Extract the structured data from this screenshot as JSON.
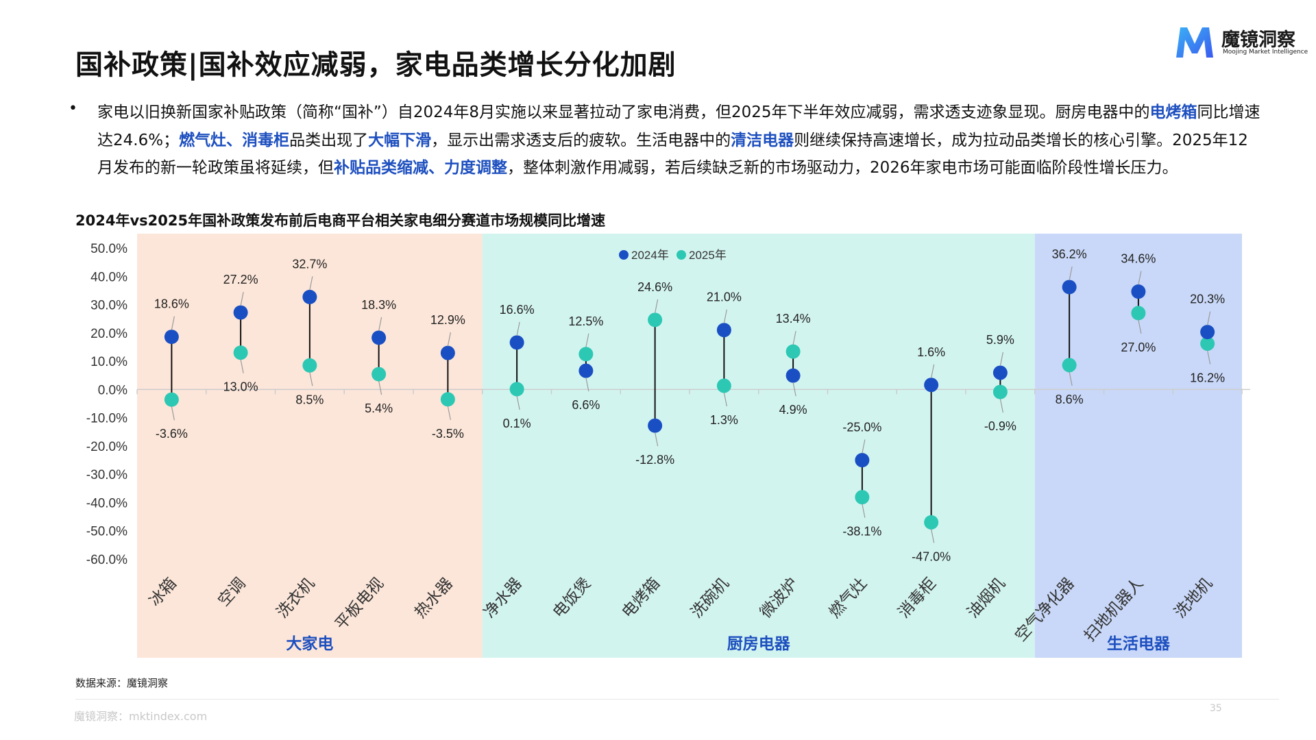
{
  "page": {
    "title": "国补政策|国补效应减弱，家电品类增长分化加剧",
    "logo": {
      "name": "魔镜洞察",
      "sub": "Moojing Market Intelligence"
    },
    "bullet_segments": [
      {
        "text": "家电以旧换新国家补贴政策（简称“国补”）自2024年8月实施以来显著拉动了家电消费，但2025年下半年效应减弱，需求透支迹象显现。厨房电器中的",
        "hl": false
      },
      {
        "text": "电烤箱",
        "hl": true
      },
      {
        "text": "同比增速达24.6%；",
        "hl": false
      },
      {
        "text": "燃气灶、消毒柜",
        "hl": true
      },
      {
        "text": "品类出现了",
        "hl": false
      },
      {
        "text": "大幅下滑",
        "hl": true
      },
      {
        "text": "，显示出需求透支后的疲软。生活电器中的",
        "hl": false
      },
      {
        "text": "清洁电器",
        "hl": true
      },
      {
        "text": "则继续保持高速增长，成为拉动品类增长的核心引擎。2025年12月发布的新一轮政策虽将延续，但",
        "hl": false
      },
      {
        "text": "补贴品类缩减、力度调整",
        "hl": true
      },
      {
        "text": "，整体刺激作用减弱，若后续缺乏新的市场驱动力，2026年家电市场可能面临阶段性增长压力。",
        "hl": false
      }
    ],
    "chart_title": "2024年vs2025年国补政策发布前后电商平台相关家电细分赛道市场规模同比增速",
    "source": "数据来源：魔镜洞察",
    "footer": "魔镜洞察：mktindex.com",
    "page_number": "35"
  },
  "colors": {
    "series_2024": "#1a4fc4",
    "series_2025": "#2cc8b4",
    "bg_large": "#fce6d9",
    "bg_kitchen": "#d2f4ef",
    "bg_life": "#c9d8f8",
    "group_label": "#1d4fbf",
    "highlight": "#1d4fbf"
  },
  "chart_data": {
    "type": "dumbbell",
    "title": "2024年vs2025年国补政策发布前后电商平台相关家电细分赛道市场规模同比增速",
    "categories": [
      "冰箱",
      "空调",
      "洗衣机",
      "平板电视",
      "热水器",
      "净水器",
      "电饭煲",
      "电烤箱",
      "洗碗机",
      "微波炉",
      "燃气灶",
      "消毒柜",
      "油烟机",
      "空气净化器",
      "扫地机器人",
      "洗地机"
    ],
    "series": [
      {
        "name": "2024年",
        "values": [
          18.6,
          27.2,
          32.7,
          18.3,
          12.9,
          16.6,
          6.6,
          -12.8,
          21.0,
          4.9,
          -25.0,
          1.6,
          5.9,
          36.2,
          34.6,
          20.3
        ]
      },
      {
        "name": "2025年",
        "values": [
          -3.6,
          13.0,
          8.5,
          5.4,
          -3.5,
          0.1,
          12.5,
          24.6,
          1.3,
          13.4,
          -38.1,
          -47.0,
          -0.9,
          8.6,
          27.0,
          16.2
        ]
      }
    ],
    "groups": [
      {
        "name": "大家电",
        "from": 0,
        "to": 4
      },
      {
        "name": "厨房电器",
        "from": 5,
        "to": 12
      },
      {
        "name": "生活电器",
        "from": 13,
        "to": 15
      }
    ],
    "y_ticks": [
      "50.0%",
      "40.0%",
      "30.0%",
      "20.0%",
      "10.0%",
      "0.0%",
      "-10.0%",
      "-20.0%",
      "-30.0%",
      "-40.0%",
      "-50.0%",
      "-60.0%"
    ],
    "ylim": [
      -60,
      50
    ],
    "legend": "top-center",
    "grid": false
  }
}
